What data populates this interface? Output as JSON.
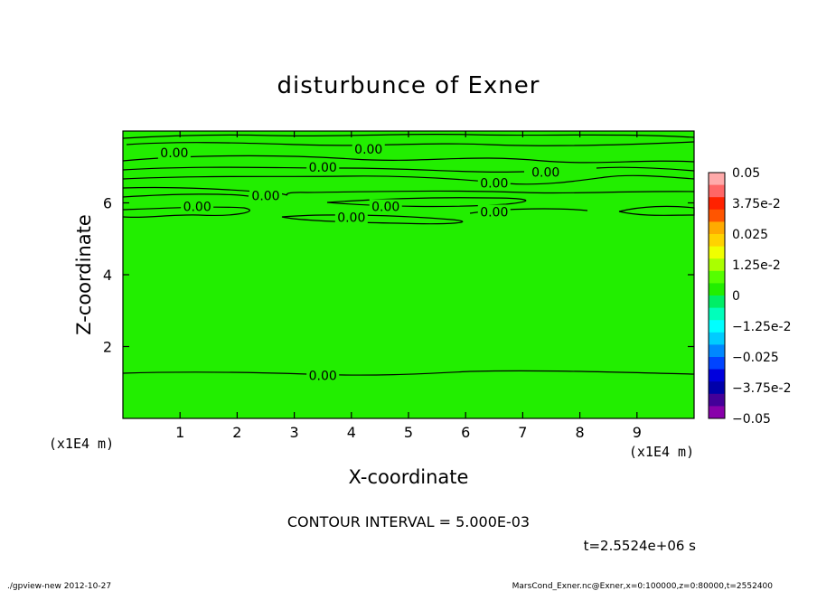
{
  "chart_data": {
    "type": "heatmap",
    "title": "disturbunce of Exner",
    "xlabel": "X-coordinate",
    "ylabel": "Z-coordinate",
    "x_unit": "(x1E4 m)",
    "z_unit": "(x1E4 m)",
    "xlim": [
      0,
      10
    ],
    "ylim": [
      0,
      8
    ],
    "x_ticks": [
      1,
      2,
      3,
      4,
      5,
      6,
      7,
      8,
      9
    ],
    "y_ticks": [
      2,
      4,
      6
    ],
    "grid": false,
    "field_value": 0,
    "field_color": "#22ee00",
    "contour_color": "#000000",
    "contour_interval_text": "CONTOUR INTERVAL = 5.000E-03",
    "time_text": "t=2.5524e+06 s",
    "contour_labels": [
      {
        "text": "0.00",
        "x": 0.9,
        "z": 7.4
      },
      {
        "text": "0.00",
        "x": 4.3,
        "z": 7.5
      },
      {
        "text": "0.00",
        "x": 3.5,
        "z": 7.0
      },
      {
        "text": "0.00",
        "x": 7.4,
        "z": 6.85
      },
      {
        "text": "0.00",
        "x": 6.5,
        "z": 6.55
      },
      {
        "text": "0.00",
        "x": 2.5,
        "z": 6.2
      },
      {
        "text": "0.00",
        "x": 1.3,
        "z": 5.9
      },
      {
        "text": "0.00",
        "x": 4.6,
        "z": 5.9
      },
      {
        "text": "0.00",
        "x": 4.0,
        "z": 5.6
      },
      {
        "text": "0.00",
        "x": 6.5,
        "z": 5.75
      },
      {
        "text": "0.00",
        "x": 3.5,
        "z": 1.2
      }
    ],
    "colorbar": {
      "labels": [
        "0.05",
        "3.75e-2",
        "0.025",
        "1.25e-2",
        "0",
        "−1.25e-2",
        "−0.025",
        "−3.75e-2",
        "−0.05"
      ],
      "colors": [
        "#ffaaaa",
        "#ff6666",
        "#ff2200",
        "#ff5500",
        "#ffaa00",
        "#ffd200",
        "#f0ff00",
        "#aaff00",
        "#55ff00",
        "#22ee00",
        "#00ee66",
        "#00ffbb",
        "#00ffff",
        "#00ccff",
        "#0088ff",
        "#0044ff",
        "#0000dd",
        "#0000aa",
        "#440099",
        "#8800aa"
      ]
    }
  },
  "footer": {
    "left": "./gpview-new   2012-10-27",
    "right": "MarsCond_Exner.nc@Exner,x=0:100000,z=0:80000,t=2552400"
  }
}
